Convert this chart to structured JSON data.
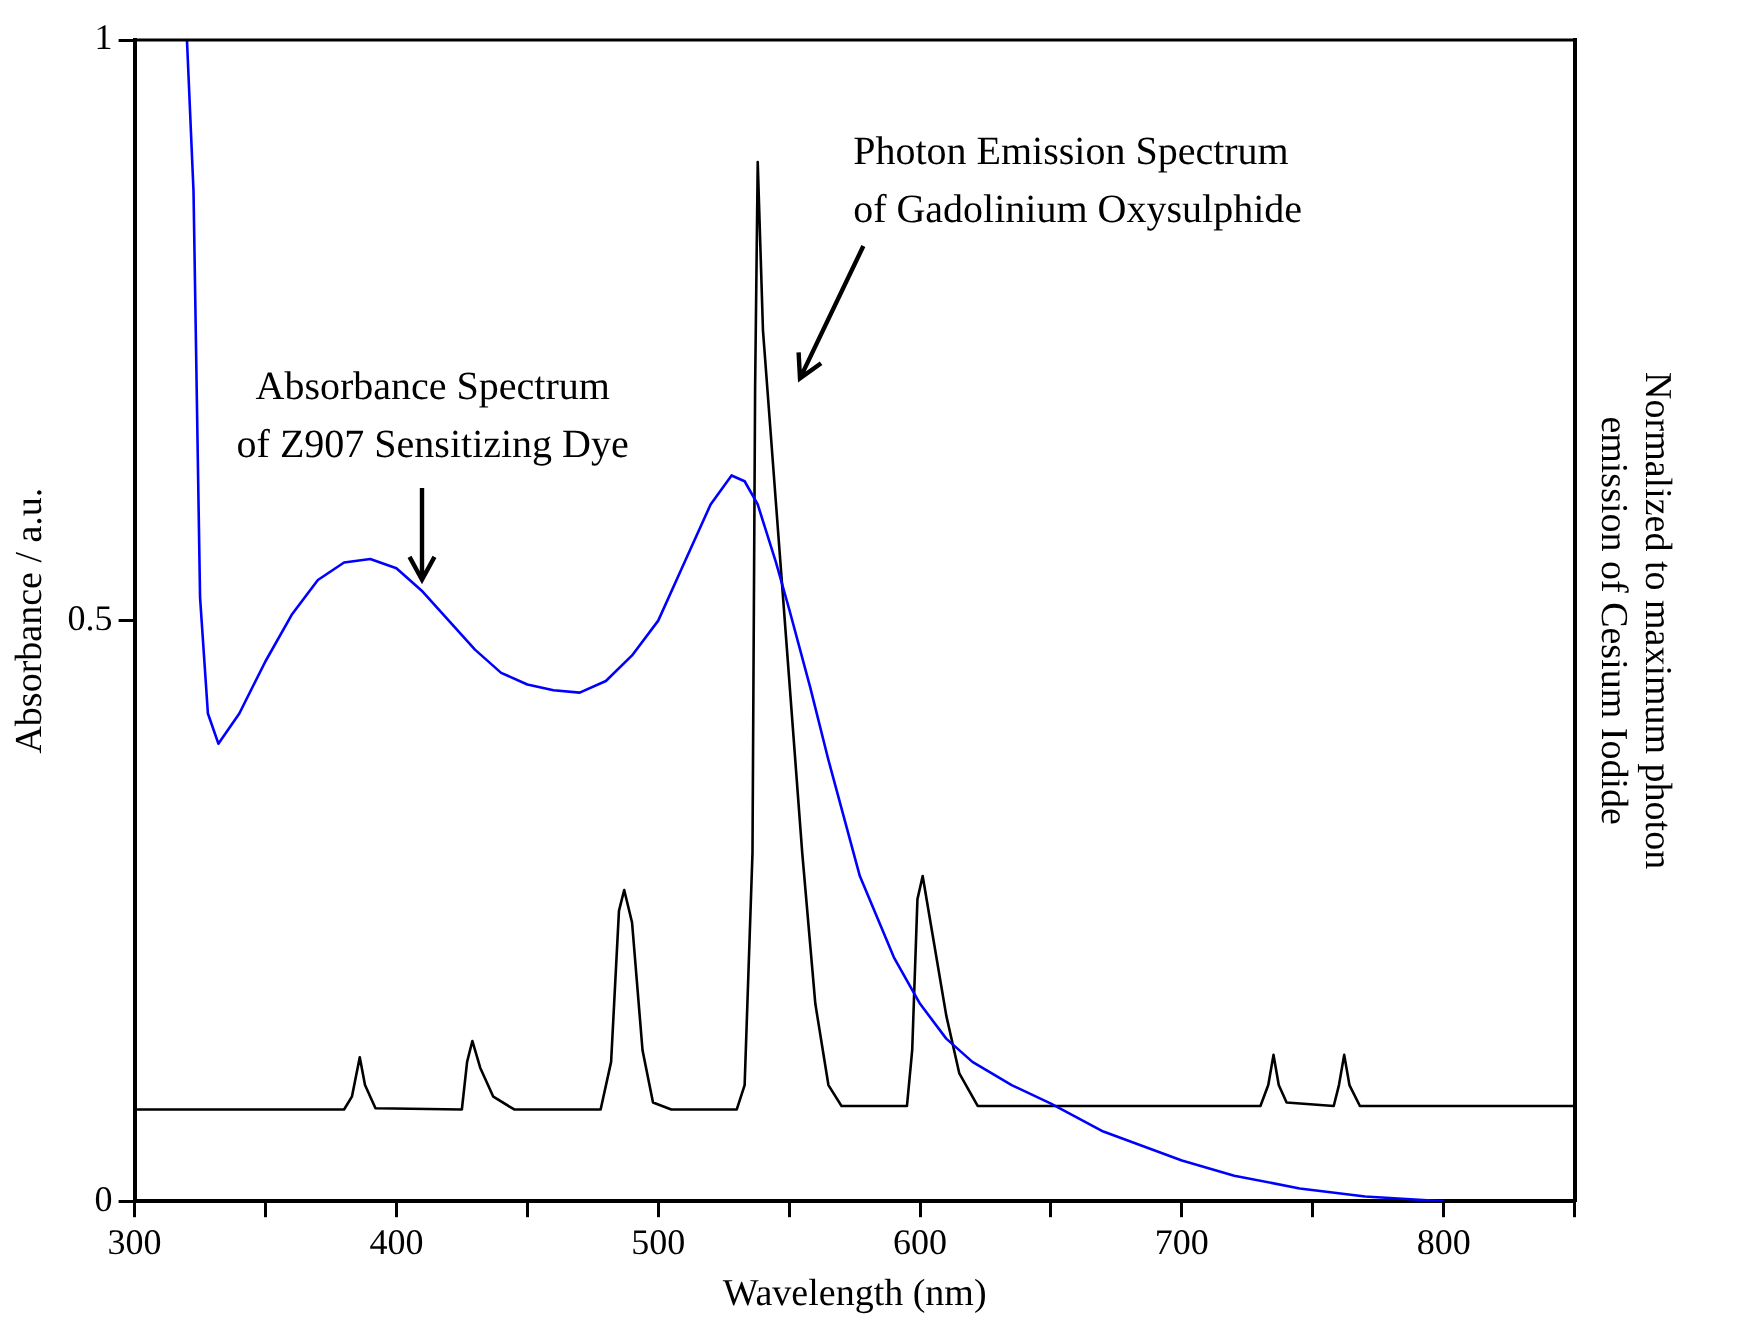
{
  "chart_data": {
    "type": "line",
    "xlabel": "Wavelength (nm)",
    "ylabel": "Absorbance / a.u.",
    "y2label": "Normalized to maximum photon\nemission of Cesium Iodide",
    "xlim": [
      300,
      850
    ],
    "xticks": [
      300,
      {
        "value": 350,
        "label": null
      },
      400,
      {
        "value": 450,
        "label": null
      },
      500,
      {
        "value": 550,
        "label": null
      },
      600,
      {
        "value": 650,
        "label": null
      },
      700,
      {
        "value": 750,
        "label": null
      },
      800,
      {
        "value": 850,
        "label": null
      }
    ],
    "ylim": [
      0,
      1
    ],
    "yticks": [
      0,
      0.5,
      1
    ],
    "grid": false,
    "legend": false,
    "marker": "none",
    "line_style": "solid",
    "series": [
      {
        "color": "#0000ff",
        "x": [
          320,
          322.5,
          325,
          328,
          332,
          340,
          350,
          360,
          370,
          380,
          390,
          400,
          410,
          420,
          430,
          440,
          450,
          460,
          470,
          480,
          490,
          500,
          510,
          520,
          528,
          533,
          538,
          545,
          550,
          558,
          565,
          577,
          590,
          600,
          610,
          620,
          635,
          650,
          670,
          700,
          720,
          745,
          770,
          800
        ],
        "values": [
          1.0,
          0.87,
          0.52,
          0.42,
          0.394,
          0.42,
          0.465,
          0.505,
          0.535,
          0.55,
          0.553,
          0.545,
          0.525,
          0.5,
          0.475,
          0.455,
          0.445,
          0.44,
          0.438,
          0.448,
          0.47,
          0.5,
          0.55,
          0.6,
          0.625,
          0.62,
          0.6,
          0.55,
          0.51,
          0.443,
          0.38,
          0.28,
          0.21,
          0.17,
          0.14,
          0.12,
          0.1,
          0.084,
          0.06,
          0.035,
          0.022,
          0.011,
          0.004,
          0.0
        ]
      },
      {
        "color": "#000000",
        "x": [
          300,
          380,
          383,
          386,
          388,
          392,
          425,
          427,
          429,
          432,
          437,
          445,
          478,
          482,
          485,
          487,
          490,
          494,
          498,
          505,
          530,
          533,
          536,
          537,
          538,
          540,
          545,
          550,
          555,
          560,
          565,
          570,
          595,
          597,
          599,
          601,
          604,
          610,
          615,
          622,
          730,
          733,
          735,
          737,
          740,
          758,
          760,
          762,
          764,
          768,
          850
        ],
        "values": [
          0.079,
          0.079,
          0.09,
          0.124,
          0.1,
          0.08,
          0.079,
          0.12,
          0.138,
          0.115,
          0.09,
          0.079,
          0.079,
          0.12,
          0.25,
          0.268,
          0.24,
          0.13,
          0.085,
          0.079,
          0.079,
          0.1,
          0.3,
          0.7,
          0.895,
          0.75,
          0.6,
          0.45,
          0.3,
          0.17,
          0.1,
          0.082,
          0.082,
          0.13,
          0.26,
          0.28,
          0.24,
          0.16,
          0.11,
          0.082,
          0.082,
          0.1,
          0.126,
          0.1,
          0.085,
          0.082,
          0.1,
          0.126,
          0.1,
          0.082,
          0.082
        ]
      }
    ],
    "annotations": [
      "Absorbance Spectrum\nof Z907 Sensitizing Dye",
      "Photon Emission Spectrum\nof Gadolinium Oxysulphide"
    ]
  }
}
